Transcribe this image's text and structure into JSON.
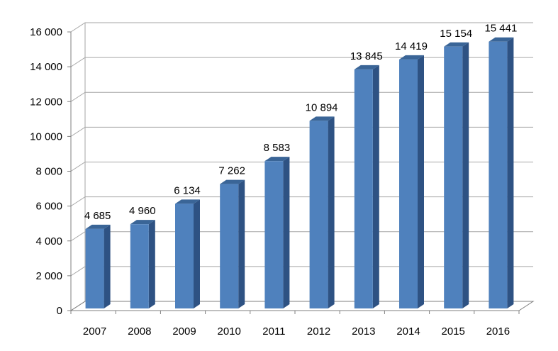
{
  "chart_data": {
    "type": "bar",
    "style": "3d-column",
    "categories": [
      "2007",
      "2008",
      "2009",
      "2010",
      "2011",
      "2012",
      "2013",
      "2014",
      "2015",
      "2016"
    ],
    "values": [
      4685,
      4960,
      6134,
      7262,
      8583,
      10894,
      13845,
      14419,
      15154,
      15441
    ],
    "value_labels": [
      "4 685",
      "4 960",
      "6 134",
      "7 262",
      "8 583",
      "10 894",
      "13 845",
      "14 419",
      "15 154",
      "15 441"
    ],
    "yticks": [
      0,
      2000,
      4000,
      6000,
      8000,
      10000,
      12000,
      14000,
      16000
    ],
    "ytick_labels": [
      "0",
      "2 000",
      "4 000",
      "6 000",
      "8 000",
      "10 000",
      "12 000",
      "14 000",
      "16 000"
    ],
    "ylim": [
      0,
      16000
    ],
    "title": "",
    "xlabel": "",
    "ylabel": "",
    "grid": true,
    "legend": "none",
    "colors": {
      "bar_front": "#4f81bd",
      "bar_side": "#2e5283",
      "bar_top": "#3a6597",
      "grid": "#a6a6a6",
      "axis": "#7f7f7f"
    }
  }
}
